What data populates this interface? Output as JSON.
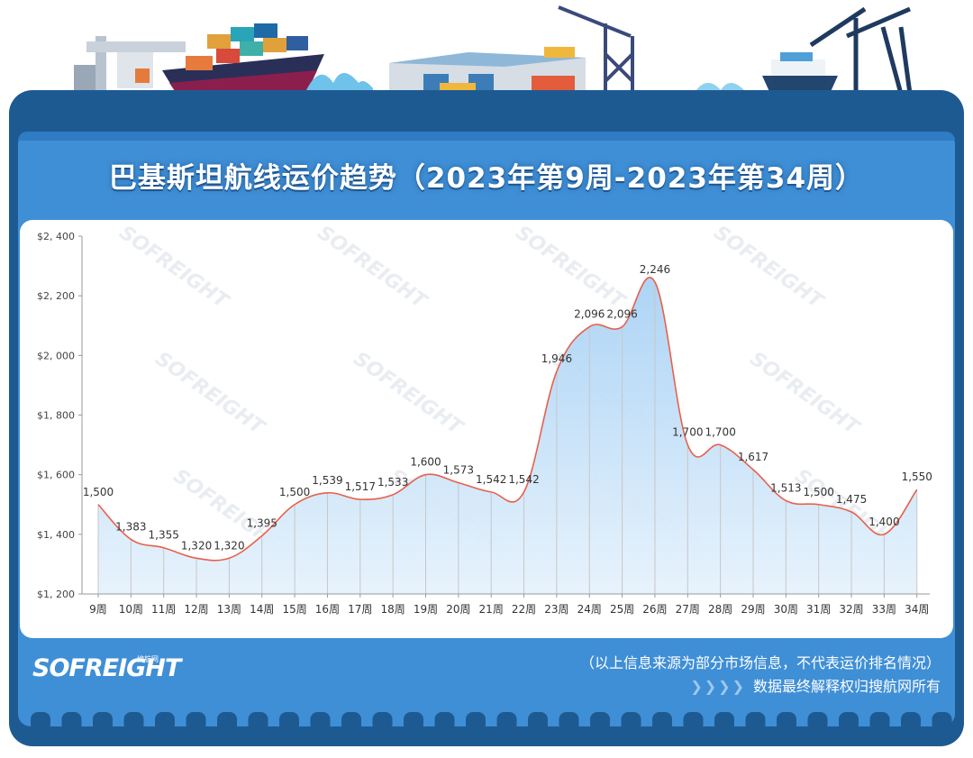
{
  "title": "巴基斯坦航线运价趋势（2023年第9周-2023年第34周）",
  "footer": {
    "note": "（以上信息来源为部分市场信息，不代表运价排名情况）",
    "rights": "数据最终解释权归搜航网所有",
    "arrows": "❯❯❯❯"
  },
  "brand": {
    "logo": "SOFREIGHT",
    "logo_cn": "搜航网",
    "watermark": "SOFREIGHT"
  },
  "colors": {
    "frame": "#1e5a92",
    "panel": "#3f8fd6",
    "line": "#e8604c",
    "area_top": "#a9d2f5",
    "area_bottom": "#e6f2fc"
  },
  "chart_data": {
    "type": "area",
    "title": "巴基斯坦航线运价趋势（2023年第9周-2023年第34周）",
    "categories": [
      "9周",
      "10周",
      "11周",
      "12周",
      "13周",
      "14周",
      "15周",
      "16周",
      "17周",
      "18周",
      "19周",
      "20周",
      "21周",
      "22周",
      "23周",
      "24周",
      "25周",
      "26周",
      "27周",
      "28周",
      "29周",
      "30周",
      "31周",
      "32周",
      "33周",
      "34周"
    ],
    "values": [
      1500,
      1383,
      1355,
      1320,
      1320,
      1395,
      1500,
      1539,
      1517,
      1533,
      1600,
      1573,
      1542,
      1542,
      1946,
      2096,
      2096,
      2246,
      1700,
      1700,
      1617,
      1513,
      1500,
      1475,
      1400,
      1550
    ],
    "value_labels": [
      "1,500",
      "1,383",
      "1,355",
      "1,320",
      "1,320",
      "1,395",
      "1,500",
      "1,539",
      "1,517",
      "1,533",
      "1,600",
      "1,573",
      "1,542",
      "1,542",
      "1,946",
      "2,096",
      "2,096",
      "2,246",
      "1,700",
      "1,700",
      "1,617",
      "1,513",
      "1,500",
      "1,475",
      "1,400",
      "1,550"
    ],
    "ylim": [
      1200,
      2400
    ],
    "yticks": [
      1200,
      1400,
      1600,
      1800,
      2000,
      2200,
      2400
    ],
    "ytick_labels": [
      "$1, 200",
      "$1, 400",
      "$1, 600",
      "$1, 800",
      "$2, 000",
      "$2, 200",
      "$2, 400"
    ],
    "smooth": true,
    "grid": false,
    "legend": "none"
  }
}
